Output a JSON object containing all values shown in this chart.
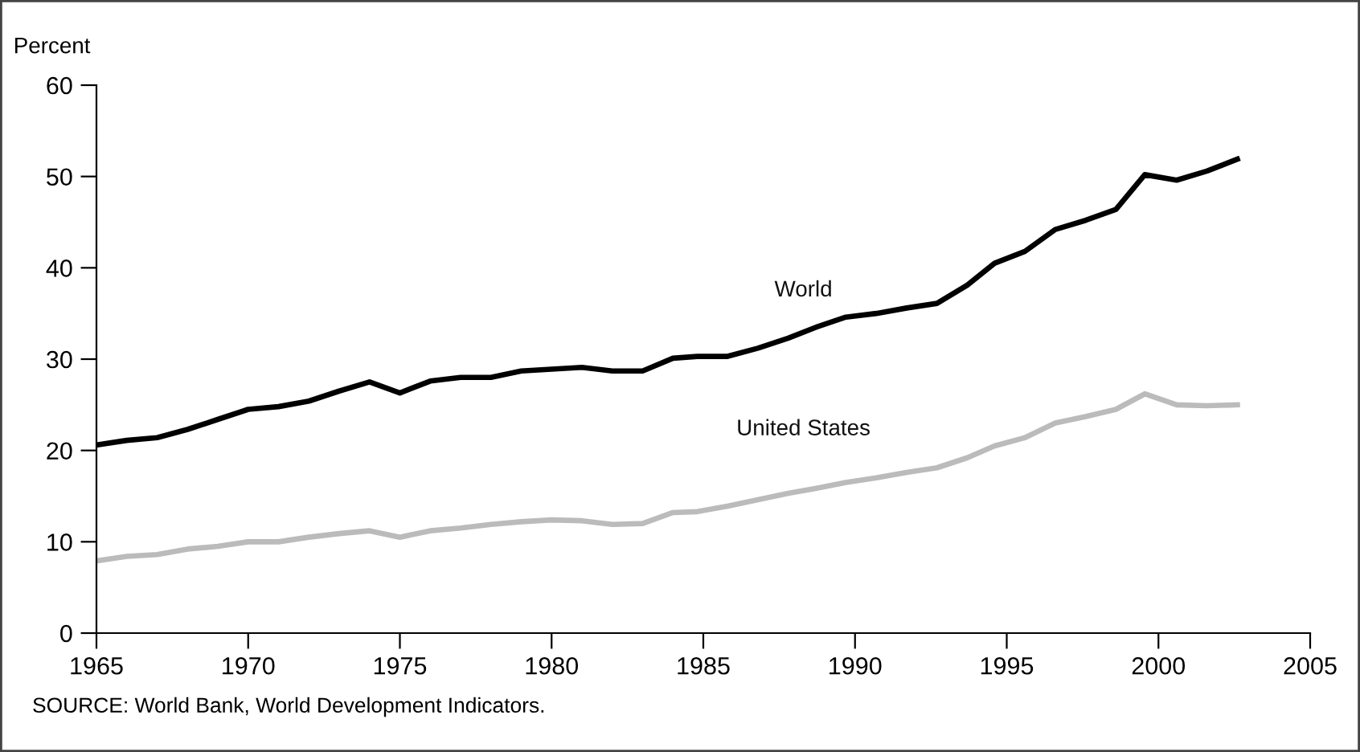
{
  "chart_data": {
    "type": "line",
    "ylabel": "Percent",
    "annotations": [
      "SOURCE: World Bank, World Development Indicators."
    ],
    "xlim": [
      1965,
      2005
    ],
    "xticks": [
      1965,
      1970,
      1975,
      1980,
      1985,
      1990,
      1995,
      2000,
      2005
    ],
    "ylim": [
      0,
      60
    ],
    "yticks": [
      0,
      10,
      20,
      30,
      40,
      50,
      60
    ],
    "grid": false,
    "legend": false,
    "marker": "none",
    "line_style": "solid",
    "series": [
      {
        "name": "World",
        "color": "#000000",
        "x": [
          1965,
          1966,
          1967,
          1968,
          1969,
          1970,
          1971,
          1972,
          1973,
          1974,
          1975,
          1976,
          1977,
          1978,
          1979,
          1980,
          1981,
          1982,
          1983,
          1984,
          1984.8,
          1985.8,
          1986.8,
          1987.8,
          1988.8,
          1989.7,
          1990.7,
          1991.7,
          1992.7,
          1993.7,
          1994.6,
          1995.6,
          1996.6,
          1997.6,
          1998.6,
          1999.55,
          2000.6,
          2001.6,
          2002.6
        ],
        "values": [
          20.6,
          21.1,
          21.4,
          22.3,
          23.4,
          24.5,
          24.8,
          25.4,
          26.5,
          27.5,
          26.3,
          27.6,
          28.0,
          28.0,
          28.7,
          28.9,
          29.1,
          28.7,
          28.7,
          30.1,
          30.3,
          30.3,
          31.2,
          32.3,
          33.6,
          34.6,
          35.0,
          35.6,
          36.1,
          38.1,
          40.5,
          41.8,
          44.2,
          45.2,
          46.4,
          50.2,
          49.6,
          50.6,
          51.9
        ]
      },
      {
        "name": "United States",
        "color": "#bbbbbb",
        "x": [
          1965,
          1966,
          1967,
          1968,
          1969,
          1970,
          1971,
          1972,
          1973,
          1974,
          1975,
          1976,
          1977,
          1978,
          1979,
          1980,
          1981,
          1982,
          1983,
          1984,
          1984.8,
          1985.8,
          1986.8,
          1987.8,
          1988.8,
          1989.7,
          1990.7,
          1991.7,
          1992.7,
          1993.7,
          1994.6,
          1995.6,
          1996.6,
          1997.6,
          1998.6,
          1999.55,
          2000.6,
          2001.6,
          2002.6
        ],
        "values": [
          7.9,
          8.4,
          8.6,
          9.2,
          9.5,
          10.0,
          10.0,
          10.5,
          10.9,
          11.2,
          10.5,
          11.2,
          11.5,
          11.9,
          12.2,
          12.4,
          12.3,
          11.9,
          12.0,
          13.2,
          13.3,
          13.9,
          14.6,
          15.3,
          15.9,
          16.5,
          17.0,
          17.6,
          18.1,
          19.2,
          20.5,
          21.4,
          23.0,
          23.7,
          24.5,
          26.2,
          25.0,
          24.9,
          25.0
        ]
      }
    ]
  }
}
